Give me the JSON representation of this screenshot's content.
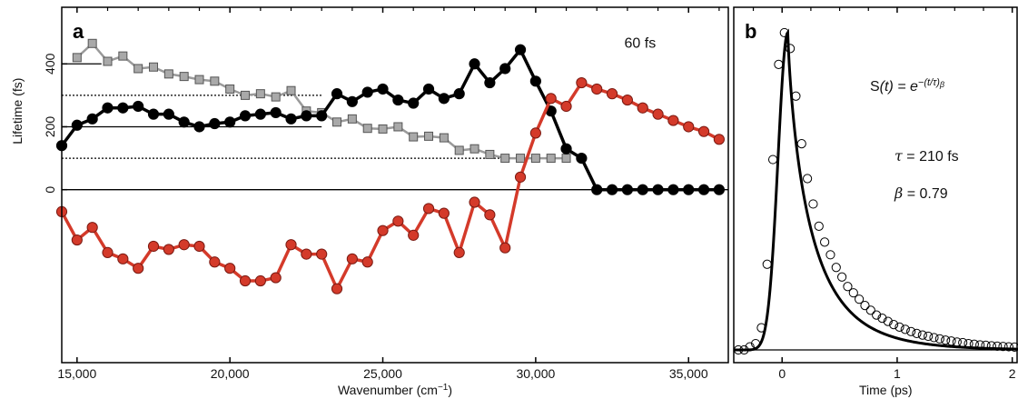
{
  "chart_data": [
    {
      "type": "line",
      "panel_label": "a",
      "xlabel": "Wavenumber (cm",
      "xlabel_sup": "−1",
      "xlabel_end": ")",
      "ylabel": "Lifetime (fs)",
      "xlim": [
        14500,
        36300
      ],
      "ylim": [
        -550,
        580
      ],
      "x_ticks": [
        15000,
        20000,
        25000,
        30000,
        35000
      ],
      "x_tick_labels": [
        "15,000",
        "20,000",
        "25,000",
        "30,000",
        "35,000"
      ],
      "y_ticks": [
        0,
        200,
        400
      ],
      "y_tick_labels": [
        "0",
        "200",
        "400"
      ],
      "annotation": "60 fs",
      "colors": {
        "black": "#000000",
        "grey": "#9a9a9a",
        "grey_marker": "#a9a9a9",
        "red": "#d43a2a"
      },
      "reference_lines": [
        {
          "y": 0,
          "x_range": [
            14500,
            36300
          ],
          "style": "solid"
        },
        {
          "y": 400,
          "x_range": [
            14500,
            15800
          ],
          "style": "solid"
        },
        {
          "y": 300,
          "x_range": [
            14500,
            23000
          ],
          "style": "dotted"
        },
        {
          "y": 200,
          "x_range": [
            14500,
            23000
          ],
          "style": "solid"
        },
        {
          "y": 100,
          "x_range": [
            14500,
            31000
          ],
          "style": "dotted"
        }
      ],
      "series": [
        {
          "color_key": "grey",
          "marker": "square",
          "x": [
            15000,
            15500,
            16000,
            16500,
            17000,
            17500,
            18000,
            18500,
            19000,
            19500,
            20000,
            20500,
            21000,
            21500,
            22000,
            22500,
            23000,
            23500,
            24000,
            24500,
            25000,
            25500,
            26000,
            26500,
            27000,
            27500,
            28000,
            28500,
            29000,
            29500,
            30000,
            30500,
            31000
          ],
          "values": [
            420,
            465,
            408,
            425,
            385,
            390,
            368,
            360,
            350,
            345,
            320,
            300,
            305,
            295,
            315,
            250,
            245,
            215,
            225,
            195,
            193,
            200,
            168,
            170,
            165,
            125,
            130,
            112,
            100,
            100,
            100,
            100,
            100
          ]
        },
        {
          "color_key": "black",
          "marker": "circle",
          "x": [
            14500,
            15000,
            15500,
            16000,
            16500,
            17000,
            17500,
            18000,
            18500,
            19000,
            19500,
            20000,
            20500,
            21000,
            21500,
            22000,
            22500,
            23000,
            23500,
            24000,
            24500,
            25000,
            25500,
            26000,
            26500,
            27000,
            27500,
            28000,
            28500,
            29000,
            29500,
            30000,
            30500,
            31000,
            31500,
            32000,
            32500,
            33000,
            33500,
            34000,
            34500,
            35000,
            35500,
            36000
          ],
          "values": [
            140,
            205,
            225,
            260,
            260,
            265,
            240,
            240,
            215,
            200,
            210,
            215,
            235,
            240,
            245,
            225,
            235,
            235,
            305,
            280,
            310,
            320,
            285,
            275,
            320,
            290,
            305,
            400,
            340,
            385,
            445,
            345,
            250,
            130,
            100,
            0,
            0,
            0,
            0,
            0,
            0,
            0,
            0,
            0
          ]
        },
        {
          "color_key": "red",
          "marker": "circle",
          "x": [
            14500,
            15000,
            15500,
            16000,
            16500,
            17000,
            17500,
            18000,
            18500,
            19000,
            19500,
            20000,
            20500,
            21000,
            21500,
            22000,
            22500,
            23000,
            23500,
            24000,
            24500,
            25000,
            25500,
            26000,
            26500,
            27000,
            27500,
            28000,
            28500,
            29000,
            29500,
            30000,
            30500,
            31000,
            31500,
            32000,
            32500,
            33000,
            33500,
            34000,
            34500,
            35000,
            35500,
            36000
          ],
          "values": [
            -70,
            -160,
            -120,
            -200,
            -220,
            -250,
            -180,
            -190,
            -175,
            -180,
            -230,
            -250,
            -290,
            -290,
            -280,
            -175,
            -205,
            -205,
            -315,
            -220,
            -230,
            -130,
            -100,
            -145,
            -60,
            -75,
            -200,
            -40,
            -80,
            -185,
            40,
            180,
            290,
            265,
            340,
            320,
            305,
            285,
            260,
            240,
            220,
            200,
            185,
            160
          ]
        }
      ]
    },
    {
      "type": "scatter",
      "panel_label": "b",
      "xlabel": "Time (ps)",
      "xlim": [
        -0.42,
        2.05
      ],
      "ylim": [
        -0.04,
        1.08
      ],
      "x_ticks": [
        0,
        1,
        2
      ],
      "x_tick_labels": [
        "0",
        "1",
        "2"
      ],
      "equation": "S",
      "equation_var": "(t)",
      "equation_eq": " = e",
      "equation_exp": "−(t/τ)",
      "equation_exp_sup": "β",
      "tau_text": "τ",
      "tau_value": " = 210 fs",
      "beta_text": "β",
      "beta_value": " = 0.79",
      "fit": {
        "tau_ps": 0.21,
        "beta": 0.79,
        "t0_ps": 0.05,
        "rise_sigma_ps": 0.085,
        "amplitude": 1.0
      },
      "data_points": {
        "x": [
          -0.38,
          -0.33,
          -0.28,
          -0.23,
          -0.18,
          -0.13,
          -0.08,
          -0.03,
          0.02,
          0.07,
          0.12,
          0.17,
          0.22,
          0.27,
          0.32,
          0.37,
          0.42,
          0.47,
          0.52,
          0.57,
          0.62,
          0.67,
          0.72,
          0.77,
          0.82,
          0.87,
          0.92,
          0.97,
          1.02,
          1.07,
          1.12,
          1.17,
          1.22,
          1.27,
          1.32,
          1.37,
          1.42,
          1.47,
          1.52,
          1.57,
          1.62,
          1.67,
          1.72,
          1.77,
          1.82,
          1.87,
          1.92,
          1.97,
          2.02
        ],
        "values": [
          0.0,
          0.0,
          0.01,
          0.02,
          0.07,
          0.27,
          0.6,
          0.9,
          1.0,
          0.95,
          0.8,
          0.65,
          0.54,
          0.46,
          0.39,
          0.34,
          0.3,
          0.26,
          0.23,
          0.2,
          0.18,
          0.16,
          0.14,
          0.125,
          0.11,
          0.1,
          0.09,
          0.08,
          0.072,
          0.065,
          0.058,
          0.052,
          0.047,
          0.043,
          0.039,
          0.035,
          0.031,
          0.028,
          0.025,
          0.023,
          0.02,
          0.018,
          0.016,
          0.015,
          0.013,
          0.012,
          0.011,
          0.01,
          0.009
        ]
      }
    }
  ]
}
